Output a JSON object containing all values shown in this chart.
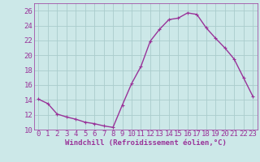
{
  "x": [
    0,
    1,
    2,
    3,
    4,
    5,
    6,
    7,
    8,
    9,
    10,
    11,
    12,
    13,
    14,
    15,
    16,
    17,
    18,
    19,
    20,
    21,
    22,
    23
  ],
  "y": [
    14.1,
    13.5,
    12.1,
    11.7,
    11.4,
    11.0,
    10.8,
    10.5,
    10.3,
    13.3,
    16.2,
    18.5,
    21.9,
    23.5,
    24.8,
    25.0,
    25.7,
    25.5,
    23.7,
    22.3,
    21.0,
    19.5,
    17.0,
    14.5
  ],
  "line_color": "#993399",
  "marker": "+",
  "bg_color": "#cce8e8",
  "grid_color": "#aacccc",
  "xlabel": "Windchill (Refroidissement éolien,°C)",
  "xlim": [
    -0.5,
    23.5
  ],
  "ylim": [
    10,
    27
  ],
  "yticks": [
    10,
    12,
    14,
    16,
    18,
    20,
    22,
    24,
    26
  ],
  "xticks": [
    0,
    1,
    2,
    3,
    4,
    5,
    6,
    7,
    8,
    9,
    10,
    11,
    12,
    13,
    14,
    15,
    16,
    17,
    18,
    19,
    20,
    21,
    22,
    23
  ],
  "xlabel_fontsize": 6.5,
  "tick_fontsize": 6.5,
  "line_width": 1.0,
  "marker_size": 3.5,
  "marker_edge_width": 0.8
}
